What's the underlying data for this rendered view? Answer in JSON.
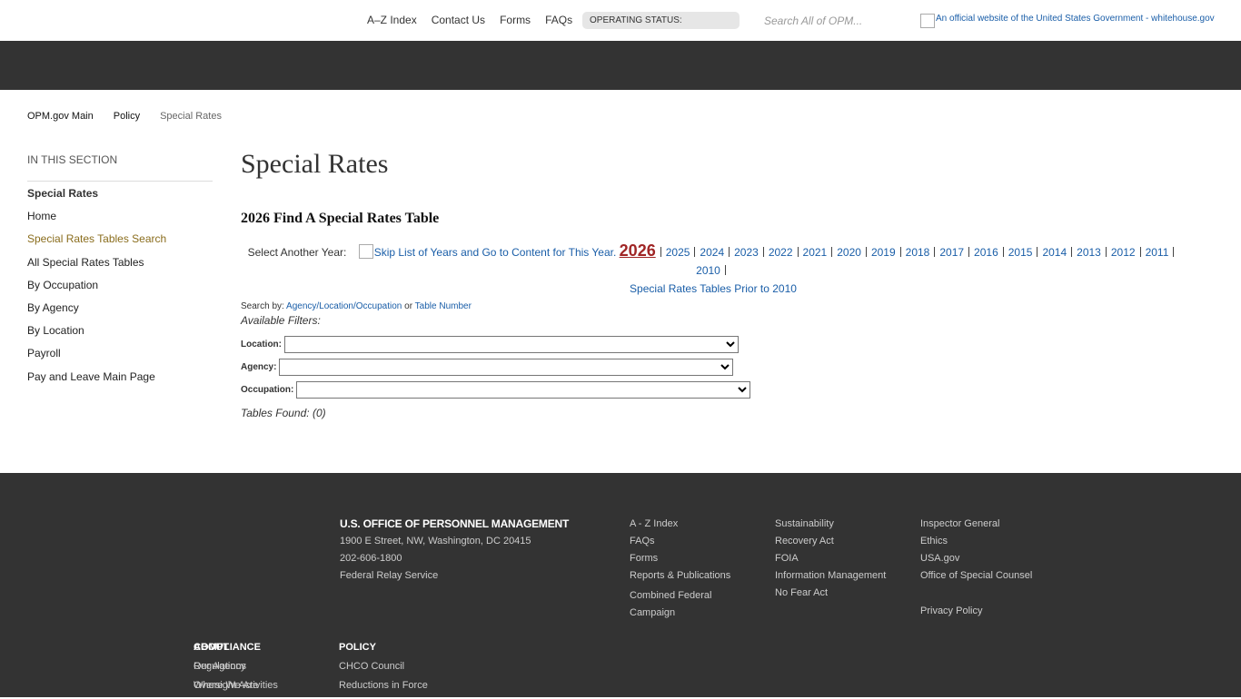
{
  "top_nav": {
    "links": [
      "A–Z Index",
      "Contact Us",
      "Forms",
      "FAQs"
    ],
    "status": "OPERATING STATUS:",
    "search_placeholder": "Search All of OPM...",
    "gov_badge": "An official website of the United States Government - whitehouse.gov"
  },
  "breadcrumb": [
    "OPM.gov Main",
    "Policy",
    "Special Rates"
  ],
  "sidebar": {
    "heading": "IN THIS SECTION",
    "items": [
      "Special Rates",
      "Home",
      "Special Rates Tables Search",
      "All Special Rates Tables",
      "By Occupation",
      "By Agency",
      "By Location",
      "Payroll",
      "Pay and Leave Main Page"
    ]
  },
  "main": {
    "title": "Special Rates",
    "subtitle": "2026 Find A Special Rates Table",
    "year_label": "Select Another Year:",
    "skip_link": "Skip List of Years and Go to Content for This Year.",
    "current_year": "2026",
    "years": [
      "2025",
      "2024",
      "2023",
      "2022",
      "2021",
      "2020",
      "2019",
      "2018",
      "2017",
      "2016",
      "2015",
      "2014",
      "2013",
      "2012",
      "2011",
      "2010"
    ],
    "prior_link": "Special Rates Tables Prior to 2010",
    "search_by": "Search by:",
    "search_link_1": "Agency/Location/Occupation",
    "search_or": "or",
    "search_link_2": "Table Number",
    "filters_label": "Available Filters:",
    "filters": [
      "Location:",
      "Agency:",
      "Occupation:"
    ],
    "tables_found": "Tables Found: (0)"
  },
  "footer": {
    "org": {
      "name": "U.S. OFFICE OF PERSONNEL MANAGEMENT",
      "lines": [
        "1900 E Street, NW, Washington, DC 20415",
        "202-606-1800",
        "Federal Relay Service"
      ]
    },
    "columns": [
      [
        "A - Z Index",
        "FAQs",
        "Forms",
        "Reports & Publications",
        "Combined Federal Campaign"
      ],
      [
        "Sustainability",
        "Recovery Act",
        "FOIA",
        "Information Management",
        "No Fear Act"
      ],
      [
        "Inspector General",
        "Ethics",
        "USA.gov",
        "Office of Special Counsel",
        "Privacy Policy"
      ]
    ],
    "sections": [
      {
        "heading": "ABOUT",
        "links": [
          "Our Agency",
          "Where We Are"
        ]
      },
      {
        "heading": "COMPLIANCE",
        "links": [
          "Regulations",
          "Oversight Activities"
        ]
      },
      {
        "heading": "POLICY",
        "links": [
          "CHCO Council",
          "Reductions in Force"
        ]
      }
    ]
  }
}
